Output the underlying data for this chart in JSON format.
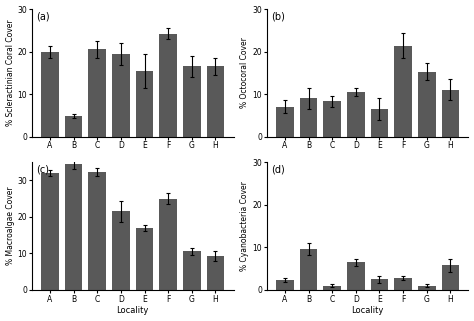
{
  "categories": [
    "A",
    "B",
    "C",
    "D",
    "E",
    "F",
    "G",
    "H"
  ],
  "subplot_a": {
    "label": "% Scleractinian Coral Cover",
    "values": [
      19.8,
      4.8,
      20.5,
      19.4,
      15.5,
      24.2,
      16.5,
      16.5
    ],
    "errors": [
      1.4,
      0.5,
      2.0,
      2.5,
      4.0,
      1.3,
      2.5,
      2.0
    ]
  },
  "subplot_b": {
    "label": "% Octocoral Cover",
    "values": [
      7.0,
      9.0,
      8.3,
      10.5,
      6.5,
      21.4,
      15.2,
      11.0
    ],
    "errors": [
      1.5,
      2.5,
      1.3,
      1.0,
      2.5,
      3.0,
      2.0,
      2.5
    ]
  },
  "subplot_c": {
    "label": "% Macroalgae Cover",
    "values": [
      32.0,
      34.5,
      32.3,
      21.5,
      17.0,
      25.0,
      10.6,
      9.3
    ],
    "errors": [
      0.8,
      1.3,
      1.0,
      3.0,
      0.8,
      1.5,
      1.0,
      1.3
    ]
  },
  "subplot_d": {
    "label": "% Cyanobacteria Cover",
    "values": [
      2.3,
      9.6,
      1.0,
      6.5,
      2.5,
      2.8,
      1.0,
      5.8
    ],
    "errors": [
      0.5,
      1.5,
      0.4,
      0.8,
      0.8,
      0.5,
      0.3,
      1.5
    ]
  },
  "bar_color": "#595959",
  "xlabel": "Locality",
  "ylim_a": [
    0,
    30
  ],
  "ylim_b": [
    0,
    30
  ],
  "ylim_c": [
    0,
    35
  ],
  "ylim_d": [
    0,
    30
  ],
  "yticks_a": [
    0,
    10,
    20,
    30
  ],
  "yticks_b": [
    0,
    10,
    20,
    30
  ],
  "yticks_c": [
    0,
    10,
    20,
    30
  ],
  "yticks_d": [
    0,
    10,
    20,
    30
  ],
  "panel_labels": [
    "(a)",
    "(b)",
    "(c)",
    "(d)"
  ],
  "background_color": "#ffffff"
}
